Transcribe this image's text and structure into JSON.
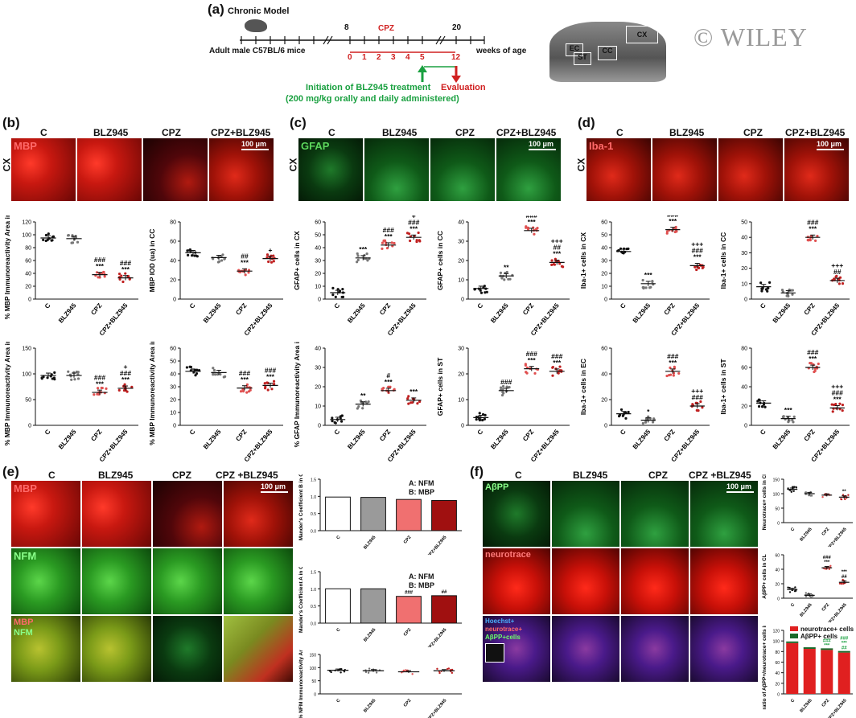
{
  "watermark": "© WILEY",
  "panel_a": {
    "label": "(a)",
    "model_title": "Chronic Model",
    "subject": "Adult male C57BL/6 mice",
    "axis_label": "weeks of age",
    "week_ticks": [
      "8",
      "20"
    ],
    "cpz_label": "CPZ",
    "cpz_ticks": [
      "0",
      "1",
      "2",
      "3",
      "4",
      "5",
      "12"
    ],
    "treatment_line1": "Initiation of BLZ945 treatment",
    "treatment_line2": "(200 mg/kg orally and daily administered)",
    "evaluation": "Evaluation",
    "brain_labels": [
      "CX",
      "EC",
      "ST",
      "CC"
    ],
    "treatment_color": "#1aa040",
    "cpz_color": "#d02020"
  },
  "groups": [
    "C",
    "BLZ945",
    "CPZ",
    "CPZ+BLZ945"
  ],
  "groups_spaced": [
    "C",
    "BLZ945",
    "CPZ",
    "CPZ +BLZ945"
  ],
  "scale_bar": "100 μm",
  "region_cx": "CX",
  "panel_b": {
    "label": "(b)",
    "stain": "MBP",
    "plots": [
      {
        "ylabel": "% MBP Immunoreactivity Area in CX",
        "ylim": [
          0,
          120
        ],
        "ticks": [
          "0",
          "20",
          "40",
          "60",
          "80",
          "100",
          "120"
        ],
        "means": [
          95,
          94,
          38,
          33
        ],
        "sig": [
          "",
          "",
          "###\n***",
          "###\n***"
        ]
      },
      {
        "ylabel": "MBP IOD (ua) in CC",
        "ylim": [
          0,
          80
        ],
        "ticks": [
          "0",
          "20",
          "40",
          "60",
          "80"
        ],
        "means": [
          48,
          43,
          29,
          42
        ],
        "sig": [
          "",
          "",
          "##\n***",
          "+"
        ]
      },
      {
        "ylabel": "% MBP Immunoreactivity Area in EC",
        "ylim": [
          0,
          150
        ],
        "ticks": [
          "0",
          "50",
          "100",
          "150"
        ],
        "means": [
          97,
          97,
          64,
          72
        ],
        "sig": [
          "",
          "",
          "###\n***",
          "+\n###\n***"
        ]
      },
      {
        "ylabel": "% MBP Immunoreactivity Area in ST",
        "ylim": [
          0,
          60
        ],
        "ticks": [
          "0",
          "10",
          "20",
          "30",
          "40",
          "50",
          "60"
        ],
        "means": [
          42,
          41,
          29,
          31
        ],
        "sig": [
          "",
          "",
          "###\n***",
          "###\n***"
        ]
      }
    ]
  },
  "panel_c": {
    "label": "(c)",
    "stain": "GFAP",
    "plots": [
      {
        "ylabel": "GFAP+ cells in CX",
        "ylim": [
          0,
          60
        ],
        "ticks": [
          "0",
          "10",
          "20",
          "30",
          "40",
          "50",
          "60"
        ],
        "means": [
          5,
          32,
          42,
          48
        ],
        "sig": [
          "",
          "***",
          "###\n***",
          "+\n###\n***"
        ]
      },
      {
        "ylabel": "GFAP+ cells in CC",
        "ylim": [
          0,
          40
        ],
        "ticks": [
          "0",
          "10",
          "20",
          "30",
          "40"
        ],
        "means": [
          5.5,
          12,
          35.5,
          19
        ],
        "sig": [
          "",
          "**",
          "###\n***",
          "+++\n##\n***"
        ]
      },
      {
        "ylabel": "% GFAP Immunoreactivity Area in EC",
        "ylim": [
          0,
          40
        ],
        "ticks": [
          "0",
          "10",
          "20",
          "30",
          "40"
        ],
        "means": [
          3,
          11,
          18,
          13
        ],
        "sig": [
          "",
          "**",
          "#\n***",
          "***"
        ]
      },
      {
        "ylabel": "GFAP+ cells in ST",
        "ylim": [
          0,
          30
        ],
        "ticks": [
          "0",
          "10",
          "20",
          "30"
        ],
        "means": [
          3,
          13.5,
          22,
          21
        ],
        "sig": [
          "",
          "###",
          "###\n***",
          "###\n***"
        ]
      }
    ]
  },
  "panel_d": {
    "label": "(d)",
    "stain": "Iba-1",
    "plots": [
      {
        "ylabel": "Iba-1+ cells in CX",
        "ylim": [
          0,
          60
        ],
        "ticks": [
          "0",
          "10",
          "20",
          "30",
          "40",
          "50",
          "60"
        ],
        "means": [
          37,
          12,
          54,
          26
        ],
        "sig": [
          "",
          "***",
          "###\n***",
          "+++\n###\n***"
        ]
      },
      {
        "ylabel": "Iba-1+ cells in CC",
        "ylim": [
          0,
          50
        ],
        "ticks": [
          "0",
          "10",
          "20",
          "30",
          "40",
          "50"
        ],
        "means": [
          8,
          4,
          40,
          12
        ],
        "sig": [
          "",
          "",
          "###\n***",
          "+++\n##"
        ]
      },
      {
        "ylabel": "Iba-1+ cells in EC",
        "ylim": [
          0,
          60
        ],
        "ticks": [
          "0",
          "20",
          "40",
          "60"
        ],
        "means": [
          9,
          4,
          42,
          15
        ],
        "sig": [
          "",
          "*",
          "###\n***",
          "+++\n###"
        ]
      },
      {
        "ylabel": "Iba-1+ cells in ST",
        "ylim": [
          0,
          80
        ],
        "ticks": [
          "0",
          "20",
          "40",
          "60",
          "80"
        ],
        "means": [
          23,
          7,
          60,
          18
        ],
        "sig": [
          "",
          "***",
          "###\n***",
          "+++\n###\n***"
        ]
      }
    ]
  },
  "panel_e": {
    "label": "(e)",
    "stains": [
      "MBP",
      "NFM"
    ],
    "legend_a": "A: NFM",
    "legend_b": "B: MBP",
    "plots": [
      {
        "ylabel": "Mander's Coefficient B in CX",
        "ylim": [
          0,
          1.5
        ],
        "ticks": [
          "0.0",
          "0.5",
          "1.0",
          "1.5"
        ],
        "means": [
          0.98,
          0.97,
          0.91,
          0.88
        ],
        "sig": [
          "",
          "",
          "",
          ""
        ]
      },
      {
        "ylabel": "Mander's Coefficient A in CX",
        "ylim": [
          0,
          1.5
        ],
        "ticks": [
          "0.0",
          "0.5",
          "1.0",
          "1.5"
        ],
        "means": [
          1.0,
          1.0,
          0.78,
          0.8
        ],
        "sig": [
          "",
          "",
          "###",
          "##"
        ]
      },
      {
        "ylabel": "% NFM Immunoreactivity Area in CX",
        "ylim": [
          0,
          150
        ],
        "ticks": [
          "0",
          "50",
          "100",
          "150"
        ],
        "means": [
          90,
          88,
          84,
          88
        ],
        "sig": [
          "",
          "",
          "",
          ""
        ]
      }
    ]
  },
  "panel_f": {
    "label": "(f)",
    "stains": [
      "AβPP",
      "neurotrace"
    ],
    "merge_labels": [
      "Hoechst+",
      "neurotrace+",
      "AβPP+cells"
    ],
    "legend": [
      "neurotrace+ cells",
      "AβPP+ cells"
    ],
    "plots": [
      {
        "ylabel": "Neurotrace+ cells in CL",
        "ylim": [
          0,
          150
        ],
        "ticks": [
          "0",
          "50",
          "100",
          "150"
        ],
        "means": [
          115,
          100,
          95,
          88
        ],
        "sig": [
          "",
          "",
          "",
          "**"
        ]
      },
      {
        "ylabel": "AβPP+ cells in CL",
        "ylim": [
          0,
          60
        ],
        "ticks": [
          "0",
          "20",
          "40",
          "60"
        ],
        "means": [
          12,
          4,
          42,
          22
        ],
        "sig": [
          "",
          "",
          "###\n***",
          "***\n##"
        ]
      },
      {
        "ylabel": "ratio of AβPP+/neurotrace+ cells in CL",
        "ylim": [
          0,
          120
        ],
        "ticks": [
          "0",
          "20",
          "40",
          "60",
          "80",
          "100",
          "120"
        ],
        "means": [
          96,
          85,
          83,
          78
        ],
        "sig": [
          "",
          "",
          "###\n***",
          "###\n***\n##"
        ]
      }
    ]
  }
}
